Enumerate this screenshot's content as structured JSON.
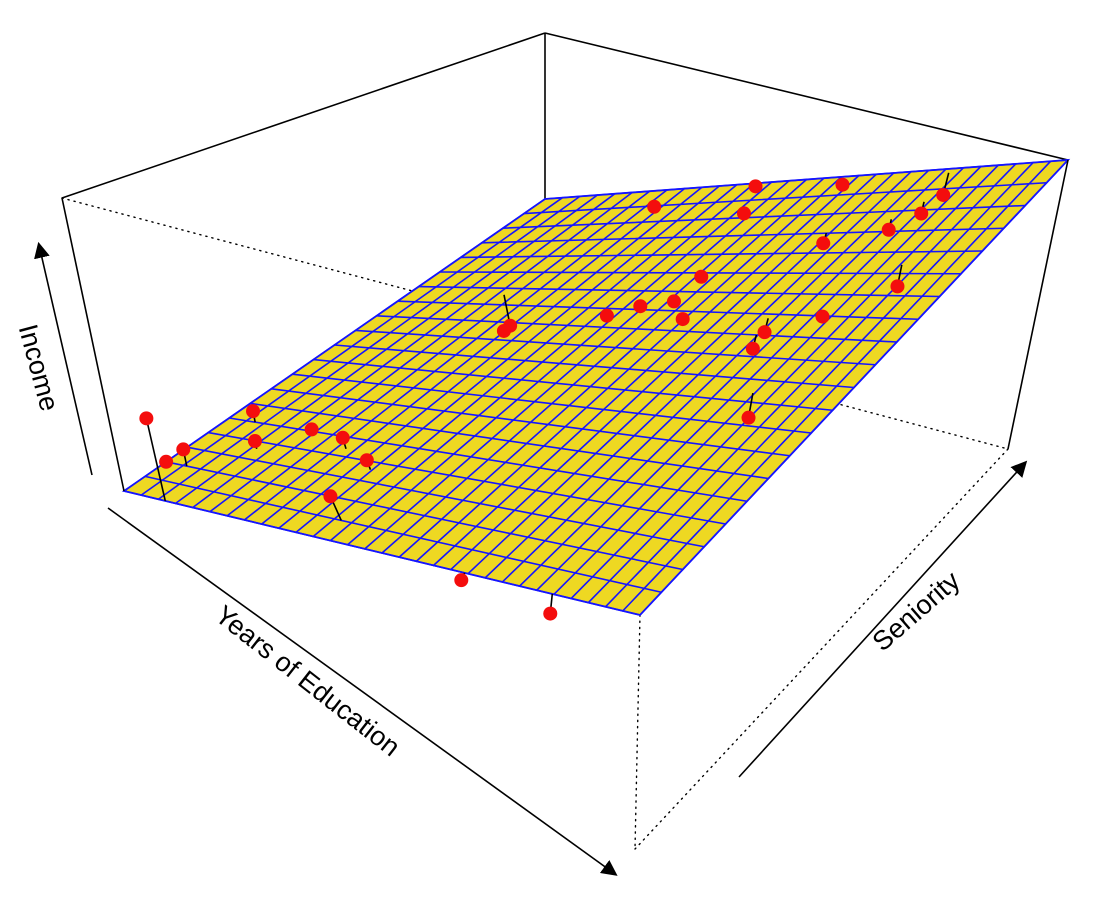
{
  "chart_data": {
    "type": "3d-regression-plane",
    "title": "",
    "axes": {
      "x_label": "Years of Education",
      "y_label": "Seniority",
      "z_label": "Income"
    },
    "plane": {
      "surface_color": "#eed822",
      "grid_color": "#1515ff",
      "point_color": "#f40d0d",
      "grid_divisions": [
        30,
        20
      ],
      "corners": {
        "education_low_seniority_low": {
          "income": 0.3
        },
        "education_low_seniority_high": {
          "income": 0.8
        },
        "education_high_seniority_low": {
          "income": 0.65
        },
        "education_high_seniority_high": {
          "income": 1.0
        }
      }
    },
    "points": [
      {
        "education": 0.23,
        "seniority": 0.97,
        "income": 0.92
      },
      {
        "education": 0.41,
        "seniority": 0.99,
        "income": 0.89
      },
      {
        "education": 0.58,
        "seniority": 0.99,
        "income": 0.87
      },
      {
        "education": 0.78,
        "seniority": 0.99,
        "income": 0.84
      },
      {
        "education": 0.45,
        "seniority": 0.92,
        "income": 0.78
      },
      {
        "education": 0.66,
        "seniority": 0.85,
        "income": 0.8
      },
      {
        "education": 0.76,
        "seniority": 0.88,
        "income": 0.85
      },
      {
        "education": 0.79,
        "seniority": 0.92,
        "income": 0.87
      },
      {
        "education": 0.87,
        "seniority": 0.77,
        "income": 0.8
      },
      {
        "education": 0.18,
        "seniority": 0.68,
        "income": 0.86
      },
      {
        "education": 0.26,
        "seniority": 0.58,
        "income": 0.67
      },
      {
        "education": 0.42,
        "seniority": 0.63,
        "income": 0.7
      },
      {
        "education": 0.46,
        "seniority": 0.66,
        "income": 0.72
      },
      {
        "education": 0.51,
        "seniority": 0.74,
        "income": 0.79
      },
      {
        "education": 0.51,
        "seniority": 0.68,
        "income": 0.72
      },
      {
        "education": 0.56,
        "seniority": 0.64,
        "income": 0.71
      },
      {
        "education": 0.72,
        "seniority": 0.64,
        "income": 0.72
      },
      {
        "education": 0.73,
        "seniority": 0.6,
        "income": 0.71
      },
      {
        "education": 0.83,
        "seniority": 0.47,
        "income": 0.66
      },
      {
        "education": 0.81,
        "seniority": 0.66,
        "income": 0.81
      },
      {
        "education": 0.05,
        "seniority": 0.25,
        "income": 0.42
      },
      {
        "education": 0.0,
        "seniority": 0.1,
        "income": 0.35
      },
      {
        "education": 0.04,
        "seniority": 0.1,
        "income": 0.34
      },
      {
        "education": 0.11,
        "seniority": 0.18,
        "income": 0.41
      },
      {
        "education": 0.16,
        "seniority": 0.25,
        "income": 0.47
      },
      {
        "education": 0.25,
        "seniority": 0.22,
        "income": 0.45
      },
      {
        "education": 0.33,
        "seniority": 0.18,
        "income": 0.45
      },
      {
        "education": 0.08,
        "seniority": 0.0,
        "income": 0.22
      },
      {
        "education": 0.38,
        "seniority": 0.05,
        "income": 0.33
      },
      {
        "education": 0.66,
        "seniority": 0.0,
        "income": 0.46
      },
      {
        "education": 0.83,
        "seniority": 0.0,
        "income": 0.51
      }
    ]
  }
}
